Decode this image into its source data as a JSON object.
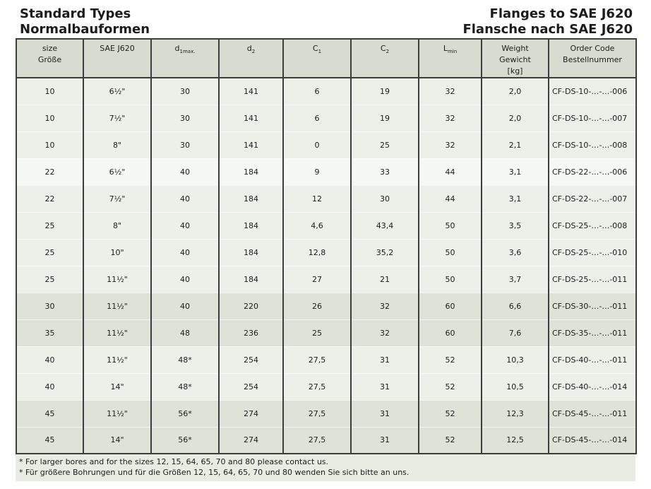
{
  "header": {
    "title_left": "Standard Types\nNormalbauformen",
    "title_right": "Flanges to SAE J620\nFlansche nach SAE J620"
  },
  "table": {
    "headers": {
      "size": {
        "line1": "size",
        "line2": "Größe"
      },
      "sae": "SAE J620",
      "d1max": {
        "base": "d",
        "sub": "1max."
      },
      "d2": {
        "base": "d",
        "sub": "2"
      },
      "c1": {
        "base": "C",
        "sub": "1"
      },
      "c2": {
        "base": "C",
        "sub": "2"
      },
      "lmin": {
        "base": "L",
        "sub": "min"
      },
      "weight": {
        "line1": "Weight",
        "line2": "Gewicht",
        "line3": "[kg]"
      },
      "order": {
        "line1": "Order Code",
        "line2": "Bestellnummer"
      }
    },
    "column_keys": [
      "size",
      "sae-j620",
      "d1max",
      "d2",
      "c1",
      "c2",
      "lmin",
      "weight",
      "order-code"
    ],
    "rows": [
      {
        "shade": "normal",
        "values": [
          "10",
          "6½\"",
          "30",
          "141",
          "6",
          "19",
          "32",
          "2,0",
          "CF-DS-10-…-…-006"
        ]
      },
      {
        "shade": "normal",
        "values": [
          "10",
          "7½\"",
          "30",
          "141",
          "6",
          "19",
          "32",
          "2,0",
          "CF-DS-10-…-…-007"
        ]
      },
      {
        "shade": "normal",
        "values": [
          "10",
          "8\"",
          "30",
          "141",
          "0",
          "25",
          "32",
          "2,1",
          "CF-DS-10-…-…-008"
        ]
      },
      {
        "shade": "lighter",
        "values": [
          "22",
          "6½\"",
          "40",
          "184",
          "9",
          "33",
          "44",
          "3,1",
          "CF-DS-22-…-…-006"
        ]
      },
      {
        "shade": "normal",
        "values": [
          "22",
          "7½\"",
          "40",
          "184",
          "12",
          "30",
          "44",
          "3,1",
          "CF-DS-22-…-…-007"
        ]
      },
      {
        "shade": "normal",
        "values": [
          "25",
          "8\"",
          "40",
          "184",
          "4,6",
          "43,4",
          "50",
          "3,5",
          "CF-DS-25-…-…-008"
        ]
      },
      {
        "shade": "normal",
        "values": [
          "25",
          "10\"",
          "40",
          "184",
          "12,8",
          "35,2",
          "50",
          "3,6",
          "CF-DS-25-…-…-010"
        ]
      },
      {
        "shade": "normal",
        "values": [
          "25",
          "11½\"",
          "40",
          "184",
          "27",
          "21",
          "50",
          "3,7",
          "CF-DS-25-…-…-011"
        ]
      },
      {
        "shade": "dark",
        "values": [
          "30",
          "11½\"",
          "40",
          "220",
          "26",
          "32",
          "60",
          "6,6",
          "CF-DS-30-…-…-011"
        ]
      },
      {
        "shade": "dark",
        "values": [
          "35",
          "11½\"",
          "48",
          "236",
          "25",
          "32",
          "60",
          "7,6",
          "CF-DS-35-…-…-011"
        ]
      },
      {
        "shade": "normal",
        "values": [
          "40",
          "11½\"",
          "48*",
          "254",
          "27,5",
          "31",
          "52",
          "10,3",
          "CF-DS-40-…-…-011"
        ]
      },
      {
        "shade": "normal",
        "values": [
          "40",
          "14\"",
          "48*",
          "254",
          "27,5",
          "31",
          "52",
          "10,5",
          "CF-DS-40-…-…-014"
        ]
      },
      {
        "shade": "dark",
        "values": [
          "45",
          "11½\"",
          "56*",
          "274",
          "27,5",
          "31",
          "52",
          "12,3",
          "CF-DS-45-…-…-011"
        ]
      },
      {
        "shade": "dark",
        "values": [
          "45",
          "14\"",
          "56*",
          "274",
          "27,5",
          "31",
          "52",
          "12,5",
          "CF-DS-45-…-…-014"
        ]
      }
    ]
  },
  "footnotes": [
    "* For larger bores and for the sizes 12, 15, 64, 65, 70 and 80 please contact us.",
    "* Für größere Bohrungen und für die Größen 12, 15, 64, 65, 70 und 80 wenden Sie sich bitte an uns."
  ],
  "colors": {
    "page_bg": "#ffffff",
    "header_bg": "#d8dcd0",
    "row_bg": "#edf0e9",
    "row_bg_lighter": "#f6f8f3",
    "row_bg_dark": "#dfe3d7",
    "footnote_bg": "#e9ece3",
    "border_dark": "#3d3d3d",
    "text": "#1c1c1c"
  }
}
